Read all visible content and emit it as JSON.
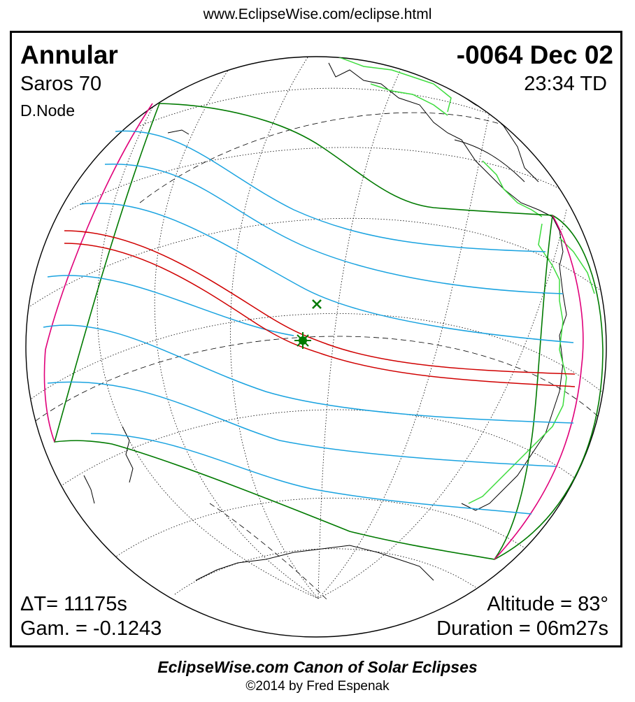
{
  "header": {
    "url": "www.EclipseWise.com/eclipse.html"
  },
  "eclipse": {
    "type": "Annular",
    "date": "-0064 Dec 02",
    "saros": "Saros  70",
    "time": "23:34 TD",
    "node": "D.Node",
    "delta_t": "ΔT=  11175s",
    "gamma": "Gam. = -0.1243",
    "altitude": "Altitude = 83°",
    "duration": "Duration = 06m27s"
  },
  "footer": {
    "canon": "EclipseWise.com Canon of Solar Eclipses",
    "copyright": "©2014 by Fred Espenak"
  },
  "colors": {
    "limits": "#007a00",
    "penumbral_bands": "#1aa3e0",
    "central_path": "#d00000",
    "rise_set_curves": "#e0007a",
    "coastlines_americas": "#3ddc3d",
    "coastlines": "#000000",
    "graticule": "#000000"
  },
  "markers": {
    "greatest_duration": "x-mark-icon",
    "greatest_eclipse": "asterisk-icon"
  }
}
